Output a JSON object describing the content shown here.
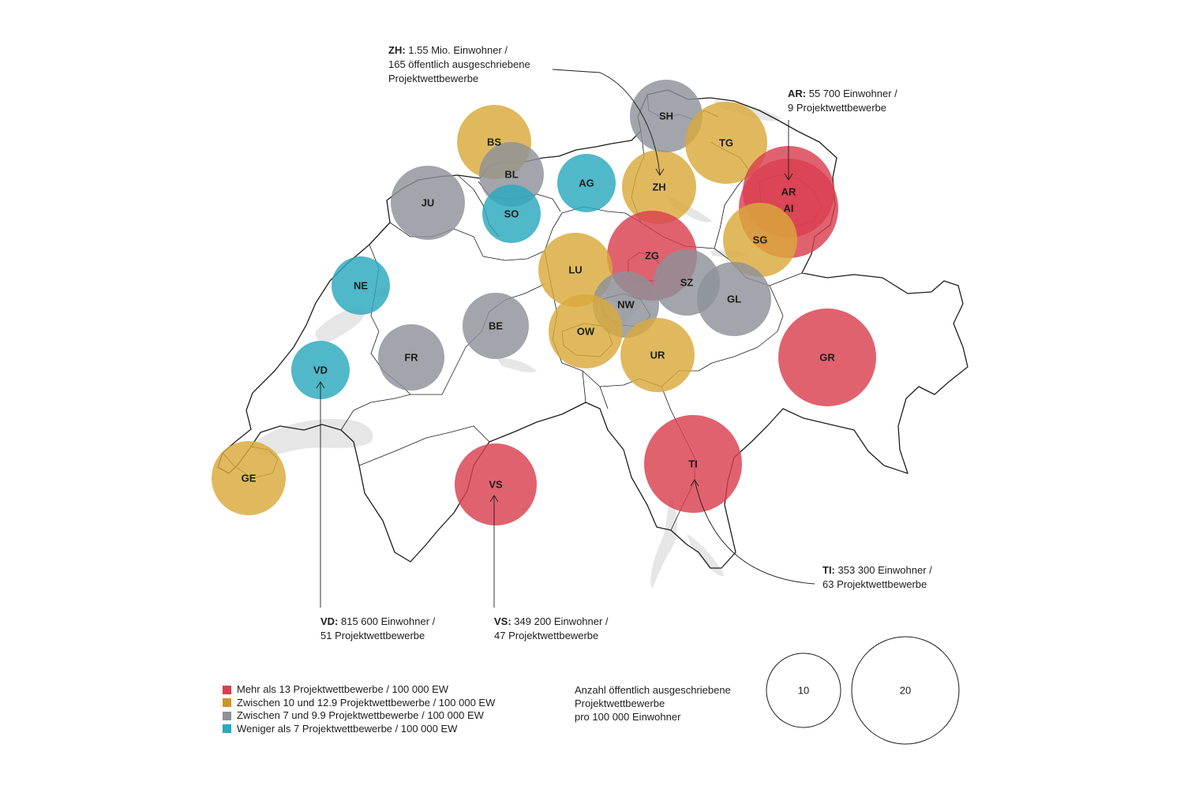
{
  "colors": {
    "red": "#d9404f",
    "gold": "#d9a93a",
    "grey": "#8e9198",
    "teal": "#2aa8bd",
    "lake": "#e6e6e6",
    "line": "#1d1d1b"
  },
  "cantons": [
    {
      "code": "ZH",
      "category": "gold"
    },
    {
      "code": "SH",
      "category": "grey"
    },
    {
      "code": "TG",
      "category": "gold"
    },
    {
      "code": "BS",
      "category": "gold"
    },
    {
      "code": "BL",
      "category": "grey"
    },
    {
      "code": "AG",
      "category": "teal"
    },
    {
      "code": "JU",
      "category": "grey"
    },
    {
      "code": "SO",
      "category": "teal"
    },
    {
      "code": "AR",
      "category": "red"
    },
    {
      "code": "AI",
      "category": "red"
    },
    {
      "code": "SG",
      "category": "gold"
    },
    {
      "code": "ZG",
      "category": "red"
    },
    {
      "code": "LU",
      "category": "gold"
    },
    {
      "code": "SZ",
      "category": "grey"
    },
    {
      "code": "NE",
      "category": "teal"
    },
    {
      "code": "NW",
      "category": "grey"
    },
    {
      "code": "GL",
      "category": "grey"
    },
    {
      "code": "BE",
      "category": "grey"
    },
    {
      "code": "OW",
      "category": "gold"
    },
    {
      "code": "FR",
      "category": "grey"
    },
    {
      "code": "UR",
      "category": "gold"
    },
    {
      "code": "GR",
      "category": "red"
    },
    {
      "code": "VD",
      "category": "teal"
    },
    {
      "code": "TI",
      "category": "red"
    },
    {
      "code": "VS",
      "category": "red"
    },
    {
      "code": "GE",
      "category": "gold"
    }
  ],
  "annotations": {
    "zh": {
      "code": "ZH:",
      "line1": " 1.55 Mio. Einwohner /",
      "line2": "165 öffentlich ausgeschriebene",
      "line3": "Projektwettbewerbe"
    },
    "ar": {
      "code": "AR:",
      "line1": " 55 700 Einwohner /",
      "line2": "9 Projektwettbewerbe"
    },
    "ti": {
      "code": "TI:",
      "line1": " 353 300 Einwohner /",
      "line2": "63 Projektwettbewerbe"
    },
    "vd": {
      "code": "VD:",
      "line1": " 815 600 Einwohner /",
      "line2": "51 Projektwettbewerbe"
    },
    "vs": {
      "code": "VS:",
      "line1": " 349 200 Einwohner /",
      "line2": "47 Projektwettbewerbe"
    }
  },
  "legend": {
    "items": [
      {
        "label": "Mehr als 13 Projektwettbewerbe / 100 000 EW",
        "color": "#d9404f"
      },
      {
        "label": "Zwischen 10 und 12.9 Projektwettbewerbe / 100 000 EW",
        "color": "#c9972a"
      },
      {
        "label": "Zwischen 7 und 9.9 Projektwettbewerbe / 100 000 EW",
        "color": "#8e9198"
      },
      {
        "label": "Weniger als 7 Projektwettbewerbe / 100 000 EW",
        "color": "#2aa8bd"
      }
    ]
  },
  "size_legend": {
    "caption_line1": "Anzahl öffentlich ausgeschriebene",
    "caption_line2": "Projektwettbewerbe",
    "caption_line3": "pro 100 000 Einwohner",
    "small_value": "10",
    "large_value": "20"
  }
}
